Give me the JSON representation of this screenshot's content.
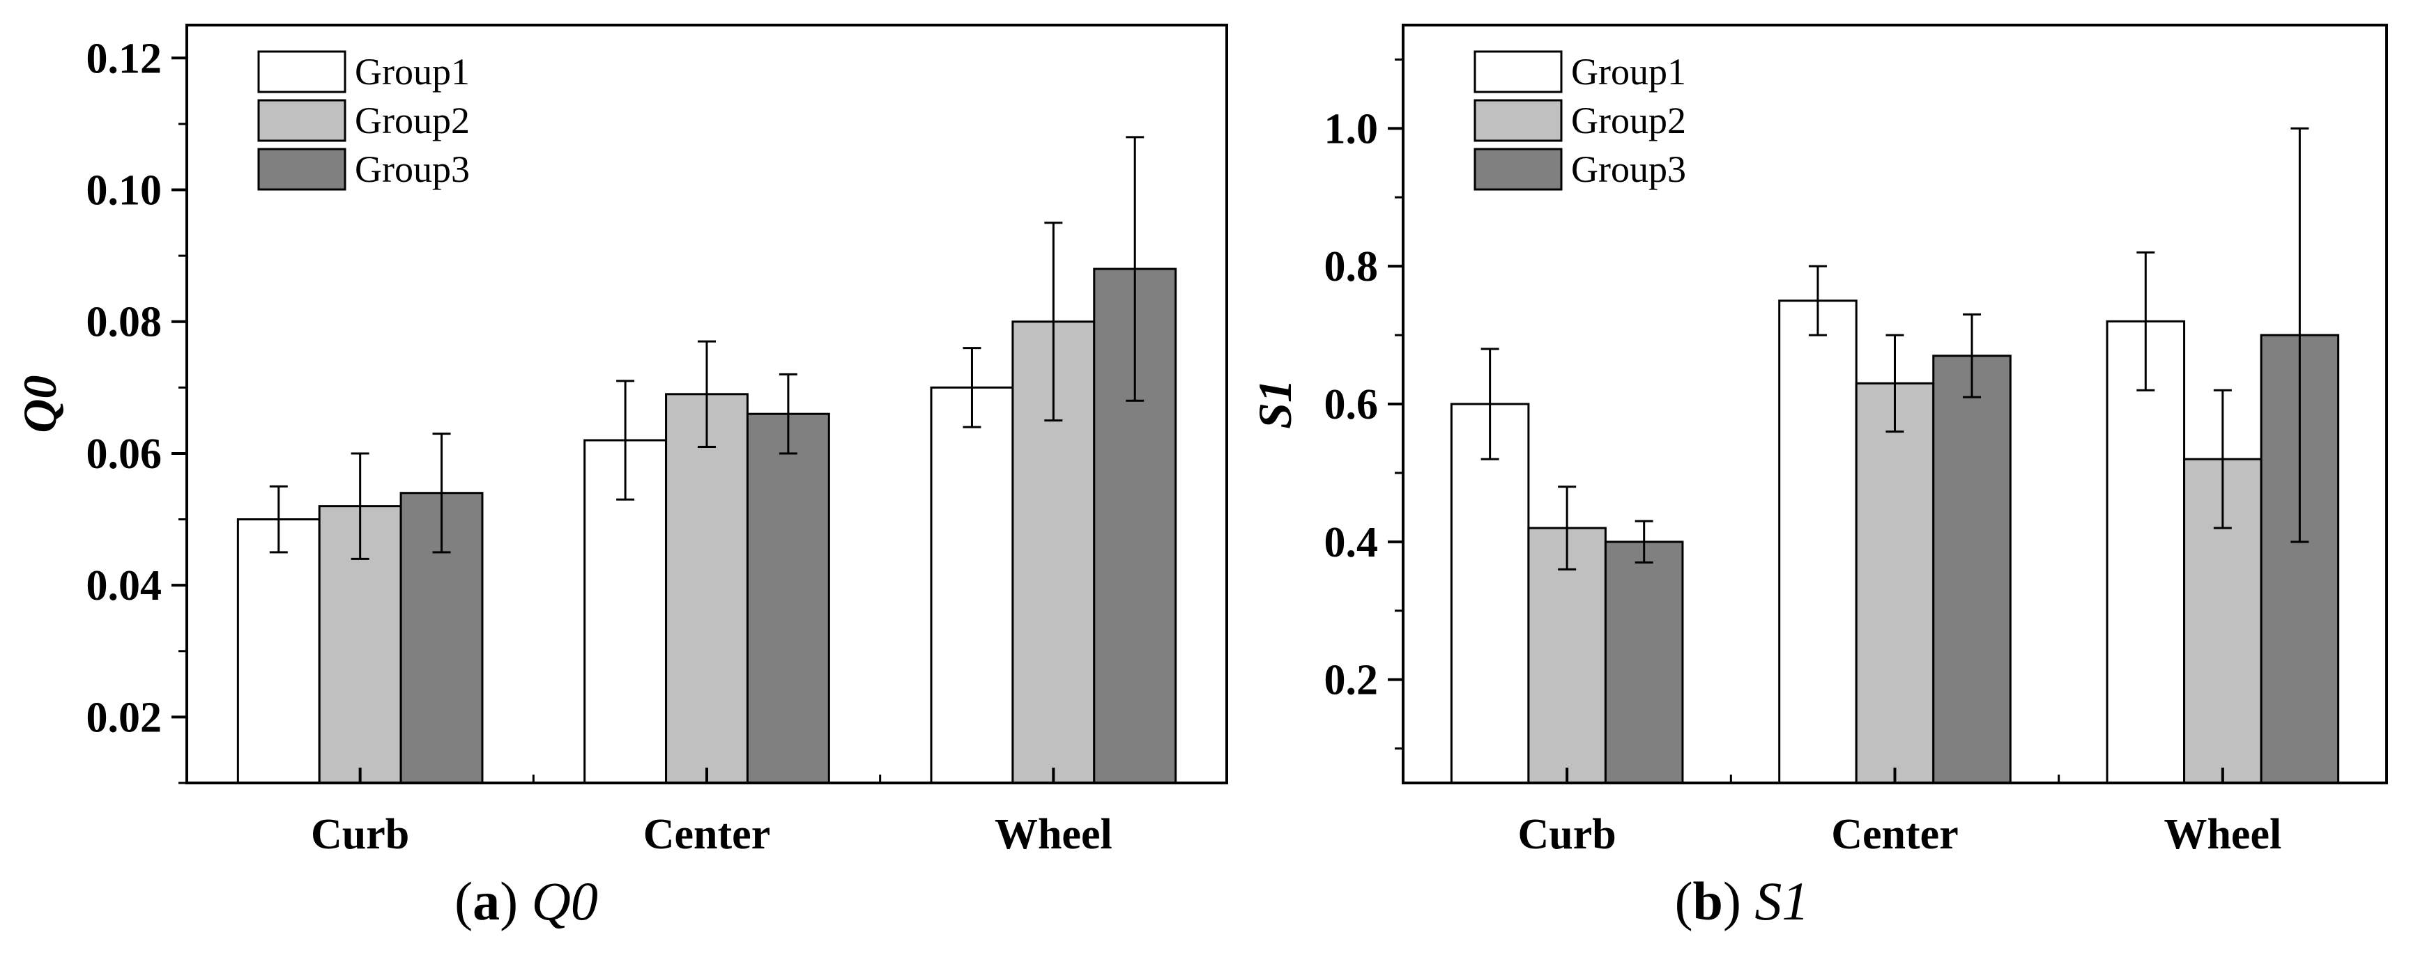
{
  "chart_data": [
    {
      "type": "bar",
      "caption": {
        "letter": "a",
        "symbol": "Q0"
      },
      "ylabel": "Q0",
      "categories": [
        "Curb",
        "Center",
        "Wheel"
      ],
      "ylim": [
        0.01,
        0.125
      ],
      "yticks": [
        "0.02",
        "0.04",
        "0.06",
        "0.08",
        "0.10",
        "0.12"
      ],
      "series": [
        {
          "name": "Group1",
          "color": "#ffffff",
          "values": [
            0.05,
            0.062,
            0.07
          ],
          "err_low": [
            0.045,
            0.053,
            0.064
          ],
          "err_high": [
            0.055,
            0.071,
            0.076
          ]
        },
        {
          "name": "Group2",
          "color": "#c0c0c0",
          "values": [
            0.052,
            0.069,
            0.08
          ],
          "err_low": [
            0.044,
            0.061,
            0.065
          ],
          "err_high": [
            0.06,
            0.077,
            0.095
          ]
        },
        {
          "name": "Group3",
          "color": "#808080",
          "values": [
            0.054,
            0.066,
            0.088
          ],
          "err_low": [
            0.045,
            0.06,
            0.068
          ],
          "err_high": [
            0.063,
            0.072,
            0.108
          ]
        }
      ],
      "legend": "top-left"
    },
    {
      "type": "bar",
      "caption": {
        "letter": "b",
        "symbol": "S1"
      },
      "ylabel": "S1",
      "categories": [
        "Curb",
        "Center",
        "Wheel"
      ],
      "ylim": [
        0.05,
        1.15
      ],
      "yticks": [
        "0.2",
        "0.4",
        "0.6",
        "0.8",
        "1.0"
      ],
      "series": [
        {
          "name": "Group1",
          "color": "#ffffff",
          "values": [
            0.6,
            0.75,
            0.72
          ],
          "err_low": [
            0.52,
            0.7,
            0.62
          ],
          "err_high": [
            0.68,
            0.8,
            0.82
          ]
        },
        {
          "name": "Group2",
          "color": "#c0c0c0",
          "values": [
            0.42,
            0.63,
            0.52
          ],
          "err_low": [
            0.36,
            0.56,
            0.42
          ],
          "err_high": [
            0.48,
            0.7,
            0.62
          ]
        },
        {
          "name": "Group3",
          "color": "#808080",
          "values": [
            0.4,
            0.67,
            0.7
          ],
          "err_low": [
            0.37,
            0.61,
            0.4
          ],
          "err_high": [
            0.43,
            0.73,
            1.0
          ]
        }
      ],
      "legend": "top-left"
    }
  ]
}
